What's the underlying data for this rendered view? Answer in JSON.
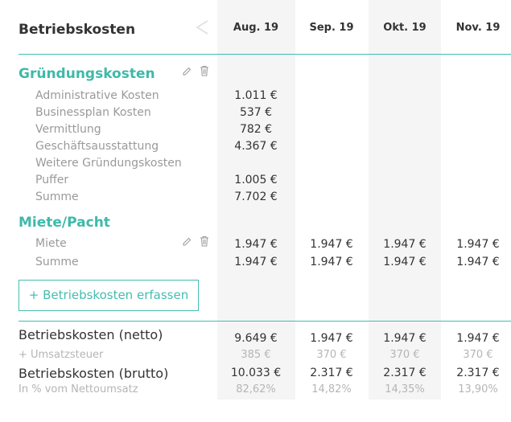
{
  "header": {
    "title": "Betriebskosten",
    "months": [
      "Aug. 19",
      "Sep. 19",
      "Okt. 19",
      "Nov. 19"
    ]
  },
  "sections": [
    {
      "title": "Gründungskosten",
      "rows": [
        {
          "label": "Administrative Kosten",
          "values": [
            "1.011 €",
            "",
            "",
            ""
          ]
        },
        {
          "label": "Businessplan Kosten",
          "values": [
            "537 €",
            "",
            "",
            ""
          ]
        },
        {
          "label": "Vermittlung",
          "values": [
            "782 €",
            "",
            "",
            ""
          ]
        },
        {
          "label": "Geschäftsausstattung",
          "values": [
            "4.367 €",
            "",
            "",
            ""
          ]
        },
        {
          "label": "Weitere Gründungskosten",
          "values": [
            "",
            "",
            "",
            ""
          ]
        },
        {
          "label": "Puffer",
          "values": [
            "1.005 €",
            "",
            "",
            ""
          ]
        },
        {
          "label": "Summe",
          "values": [
            "7.702 €",
            "",
            "",
            ""
          ]
        }
      ]
    },
    {
      "title": "Miete/Pacht",
      "rows": [
        {
          "label": "Miete",
          "values": [
            "1.947 €",
            "1.947 €",
            "1.947 €",
            "1.947 €"
          ]
        },
        {
          "label": "Summe",
          "values": [
            "1.947 €",
            "1.947 €",
            "1.947 €",
            "1.947 €"
          ]
        }
      ]
    }
  ],
  "add_button": "+ Betriebskosten erfassen",
  "totals": [
    {
      "label": "Betriebskosten (netto)",
      "values": [
        "9.649 €",
        "1.947 €",
        "1.947 €",
        "1.947 €"
      ]
    },
    {
      "label": "+ Umsatzsteuer",
      "values": [
        "385 €",
        "370 €",
        "370 €",
        "370 €"
      ]
    },
    {
      "label": "Betriebskosten (brutto)",
      "values": [
        "10.033 €",
        "2.317 €",
        "2.317 €",
        "2.317 €"
      ]
    },
    {
      "label": "In % vom Nettoumsatz",
      "values": [
        "82,62%",
        "14,82%",
        "14,35%",
        "13,90%"
      ]
    }
  ],
  "colors": {
    "accent": "#3fb9a9",
    "column_shade": "#f5f5f5"
  },
  "icons": [
    "chevron-left-icon",
    "pencil-icon",
    "trash-icon"
  ]
}
